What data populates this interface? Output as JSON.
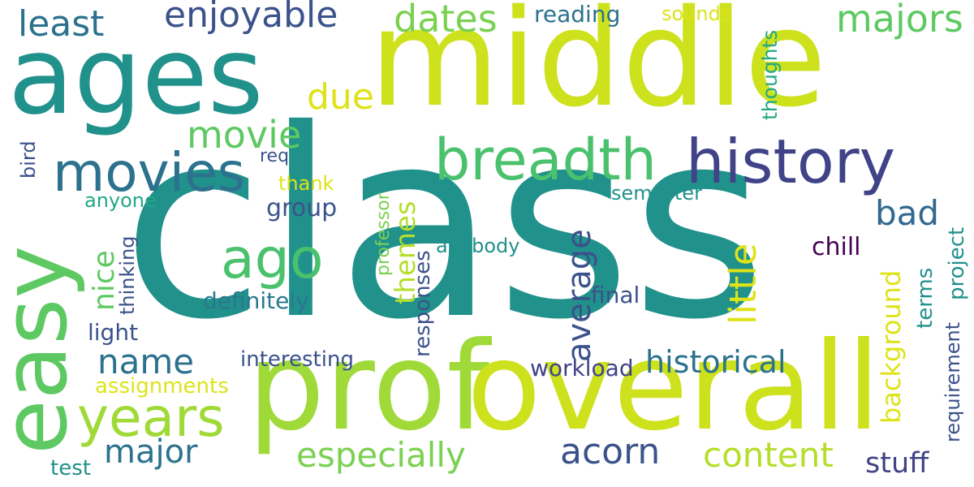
{
  "words": [
    {
      "text": "class",
      "color": "#21918c",
      "rotated": false
    },
    {
      "text": "middle",
      "color": "#cde11d",
      "rotated": false
    },
    {
      "text": "ages",
      "color": "#21918c",
      "rotated": false
    },
    {
      "text": "prof",
      "color": "#a0da39",
      "rotated": false
    },
    {
      "text": "overall",
      "color": "#cde11d",
      "rotated": false
    },
    {
      "text": "easy",
      "color": "#5ec962",
      "rotated": true
    },
    {
      "text": "history",
      "color": "#404387",
      "rotated": false
    },
    {
      "text": "breadth",
      "color": "#4ac16d",
      "rotated": false
    },
    {
      "text": "movies",
      "color": "#2c728e",
      "rotated": false
    },
    {
      "text": "ago",
      "color": "#4ac16d",
      "rotated": false
    },
    {
      "text": "years",
      "color": "#a0da39",
      "rotated": false
    },
    {
      "text": "enjoyable",
      "color": "#3b528b",
      "rotated": false
    },
    {
      "text": "least",
      "color": "#2c728e",
      "rotated": false
    },
    {
      "text": "dates",
      "color": "#7ad151",
      "rotated": false
    },
    {
      "text": "majors",
      "color": "#5ec962",
      "rotated": false
    },
    {
      "text": "reading",
      "color": "#2c728e",
      "rotated": false
    },
    {
      "text": "sounds",
      "color": "#dde318",
      "rotated": false
    },
    {
      "text": "due",
      "color": "#dde318",
      "rotated": false
    },
    {
      "text": "movie",
      "color": "#5ec962",
      "rotated": false
    },
    {
      "text": "thoughts",
      "color": "#22a884",
      "rotated": true
    },
    {
      "text": "average",
      "color": "#3b528b",
      "rotated": true
    },
    {
      "text": "little",
      "color": "#dde318",
      "rotated": true
    },
    {
      "text": "nice",
      "color": "#5ec962",
      "rotated": true
    },
    {
      "text": "themes",
      "color": "#b5de2b",
      "rotated": true
    },
    {
      "text": "bad",
      "color": "#31688e",
      "rotated": false
    },
    {
      "text": "background",
      "color": "#dde318",
      "rotated": true
    },
    {
      "text": "project",
      "color": "#21918c",
      "rotated": true
    },
    {
      "text": "name",
      "color": "#2c728e",
      "rotated": false
    },
    {
      "text": "historical",
      "color": "#2c728e",
      "rotated": false
    },
    {
      "text": "especially",
      "color": "#7ad151",
      "rotated": false
    },
    {
      "text": "acorn",
      "color": "#3b528b",
      "rotated": false
    },
    {
      "text": "content",
      "color": "#b5de2b",
      "rotated": false
    },
    {
      "text": "stuff",
      "color": "#404387",
      "rotated": false
    },
    {
      "text": "major",
      "color": "#2c728e",
      "rotated": false
    },
    {
      "text": "group",
      "color": "#3b528b",
      "rotated": false
    },
    {
      "text": "definitely",
      "color": "#2a788e",
      "rotated": false
    },
    {
      "text": "responses",
      "color": "#3b528b",
      "rotated": true
    },
    {
      "text": "professor",
      "color": "#7ad151",
      "rotated": true
    },
    {
      "text": "anybody",
      "color": "#21918c",
      "rotated": false
    },
    {
      "text": "chill",
      "color": "#440154",
      "rotated": false
    },
    {
      "text": "terms",
      "color": "#21918c",
      "rotated": true
    },
    {
      "text": "requirement",
      "color": "#3b528b",
      "rotated": true
    },
    {
      "text": "semester",
      "color": "#21918c",
      "rotated": false
    },
    {
      "text": "thank",
      "color": "#dde318",
      "rotated": false
    },
    {
      "text": "req",
      "color": "#3b528b",
      "rotated": false
    },
    {
      "text": "anyone",
      "color": "#22a884",
      "rotated": false
    },
    {
      "text": "bird",
      "color": "#3b528b",
      "rotated": true
    },
    {
      "text": "thinking",
      "color": "#3b528b",
      "rotated": true
    },
    {
      "text": "light",
      "color": "#3b528b",
      "rotated": false
    },
    {
      "text": "interesting",
      "color": "#3b528b",
      "rotated": false
    },
    {
      "text": "assignments",
      "color": "#dde318",
      "rotated": false
    },
    {
      "text": "workload",
      "color": "#404387",
      "rotated": false
    },
    {
      "text": "final",
      "color": "#3b528b",
      "rotated": false
    },
    {
      "text": "test",
      "color": "#21918c",
      "rotated": false
    }
  ]
}
